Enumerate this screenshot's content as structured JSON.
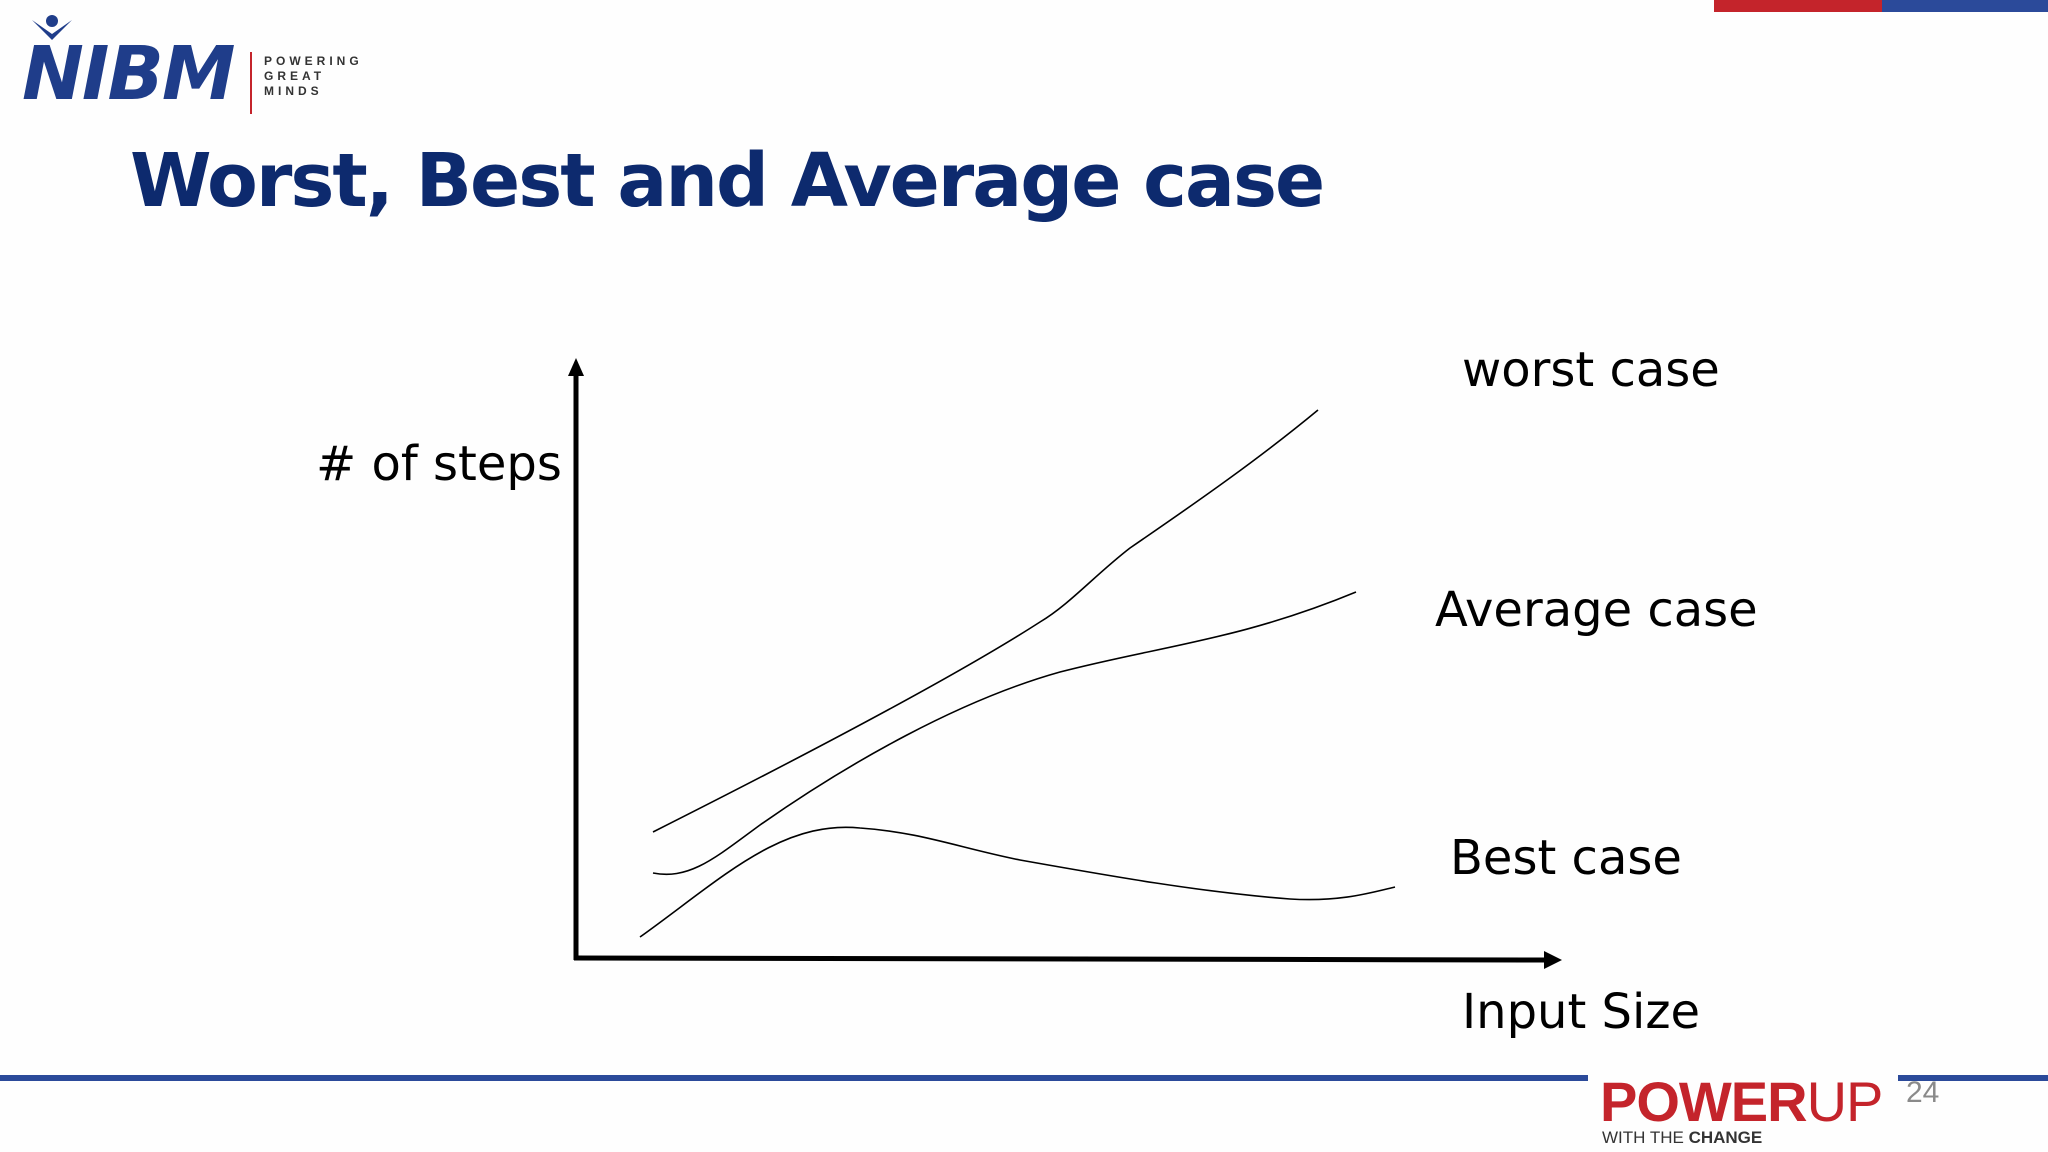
{
  "logo": {
    "name": "NIBM",
    "tagline": [
      "POWERING",
      "GREAT",
      "MINDS"
    ]
  },
  "slide": {
    "title": "Worst, Best and Average case",
    "page_number": "24"
  },
  "diagram": {
    "y_axis_label": "# of steps",
    "x_axis_label": "Input Size",
    "curves": [
      {
        "name": "worst-case",
        "label": "worst case"
      },
      {
        "name": "average-case",
        "label": "Average case"
      },
      {
        "name": "best-case",
        "label": "Best case"
      }
    ]
  },
  "footer": {
    "brand_strong": "POWER",
    "brand_light": "UP",
    "sub_prefix": "WITH THE ",
    "sub_bold": "CHANGE"
  },
  "colors": {
    "title": "#0d2a6e",
    "logo_blue": "#1f3d8a",
    "accent_red": "#c4242b",
    "accent_blue": "#2b4a9a"
  }
}
